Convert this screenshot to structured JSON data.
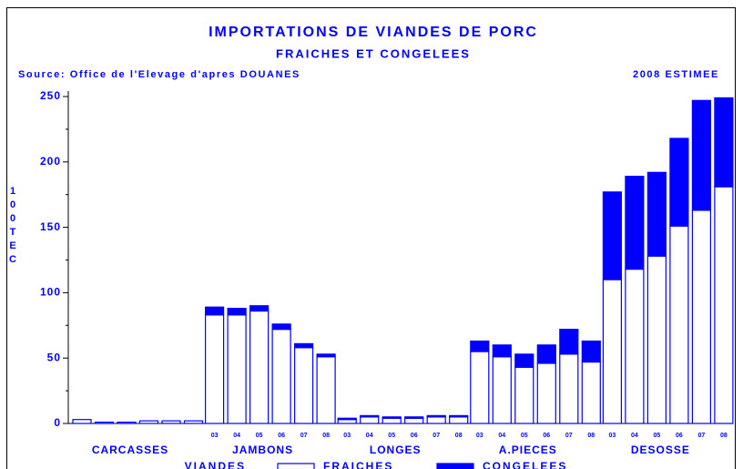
{
  "chart_data": {
    "type": "stacked-bar",
    "title": "IMPORTATIONS DE VIANDES DE PORC",
    "subtitle": "FRAICHES ET CONGELEES",
    "source": "Source: Office de l'Elevage d'apres DOUANES",
    "note": "2008 ESTIMEE",
    "y_label": "100 TEC",
    "groups": [
      "CARCASSES",
      "JAMBONS",
      "LONGES",
      "A.PIECES",
      "DESOSSE"
    ],
    "categories": [
      null,
      null,
      null,
      null,
      null,
      null,
      "03",
      "04",
      "05",
      "06",
      "07",
      "08",
      "03",
      "04",
      "05",
      "06",
      "07",
      "08",
      "03",
      "04",
      "05",
      "06",
      "07",
      "08",
      "03",
      "04",
      "05",
      "06",
      "07",
      "08"
    ],
    "legend_title": "VIANDES",
    "series": [
      {
        "name": "FRAICHES",
        "color": "#ffffff",
        "values": [
          3,
          1,
          1,
          2,
          2,
          2,
          83,
          83,
          86,
          72,
          58,
          51,
          3,
          5,
          4,
          4,
          5,
          5,
          55,
          51,
          43,
          46,
          53,
          47,
          110,
          118,
          128,
          151,
          163,
          181
        ]
      },
      {
        "name": "CONGELEES",
        "color": "#0000ff",
        "values": [
          0,
          0,
          0,
          0,
          0,
          0,
          6,
          5,
          4,
          4,
          3,
          2,
          1,
          1,
          1,
          1,
          1,
          1,
          8,
          9,
          10,
          14,
          19,
          16,
          67,
          71,
          64,
          67,
          84,
          68
        ]
      }
    ],
    "ylim": [
      0,
      250
    ],
    "yticks": [
      0,
      50,
      100,
      150,
      200,
      250
    ],
    "minor_yticks": [
      25,
      75,
      125,
      175,
      225
    ]
  }
}
